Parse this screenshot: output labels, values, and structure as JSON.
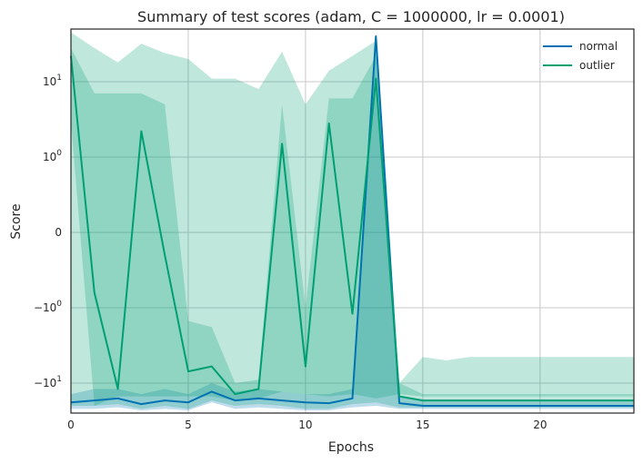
{
  "chart_data": {
    "type": "line",
    "title": "Summary of test scores (adam, C = 1000000, lr = 0.0001)",
    "xlabel": "Epochs",
    "ylabel": "Score",
    "yscale": "symlog",
    "xlim": [
      0,
      24
    ],
    "ylim": [
      -25,
      50
    ],
    "grid": true,
    "legend_position": "top-right",
    "x_ticks": [
      0,
      5,
      10,
      15,
      20
    ],
    "y_ticks": [
      {
        "value": 10,
        "label": "10",
        "exp": "1"
      },
      {
        "value": 1,
        "label": "10",
        "exp": "0"
      },
      {
        "value": 0,
        "label": "0",
        "exp": ""
      },
      {
        "value": -1,
        "label": "−10",
        "exp": "0"
      },
      {
        "value": -10,
        "label": "−10",
        "exp": "1"
      }
    ],
    "x": [
      0,
      1,
      2,
      3,
      4,
      5,
      6,
      7,
      8,
      9,
      10,
      11,
      12,
      13,
      14,
      15,
      16,
      17,
      18,
      19,
      20,
      21,
      22,
      23,
      24
    ],
    "series": [
      {
        "name": "normal",
        "color": "#0072b2",
        "mean": [
          -18,
          -17,
          -16,
          -19,
          -17,
          -18,
          -13,
          -17,
          -16,
          -17,
          -18,
          -18.5,
          -16,
          40,
          -18.5,
          -20,
          -20,
          -20,
          -20,
          -20,
          -20,
          -20,
          -20,
          -20,
          -20
        ],
        "lower": [
          -22,
          -22,
          -21,
          -23,
          -22,
          -23,
          -18,
          -22,
          -21,
          -22,
          -23,
          -23,
          -21,
          -20,
          -22,
          -22,
          -22,
          -22,
          -22,
          -22,
          -22,
          -22,
          -22,
          -22,
          -22
        ],
        "upper": [
          -14,
          -12,
          -12,
          -14,
          -12,
          -14,
          -10,
          -13,
          -12,
          -13,
          -14,
          -14,
          -12,
          45,
          -15,
          -17,
          -17,
          -17,
          -17,
          -17,
          -17,
          -17,
          -17,
          -17,
          -17
        ]
      },
      {
        "name": "outlier",
        "color": "#009e73",
        "mean": [
          22,
          -0.8,
          -12,
          2.2,
          -0.3,
          -7,
          -6,
          -14,
          -12,
          1.5,
          -6,
          2.8,
          -1.2,
          11,
          -15,
          -17,
          -17,
          -17,
          -17,
          -17,
          -17,
          -17,
          -17,
          -17,
          -17
        ],
        "lower": [
          -20,
          -20,
          -19,
          -22,
          -20,
          -22,
          -17,
          -20,
          -19,
          -20,
          -22,
          -22,
          -19,
          -18,
          -21,
          -21,
          -21,
          -21,
          -21,
          -21,
          -21,
          -21,
          -21,
          -21,
          -21
        ],
        "upper": [
          45,
          28,
          18,
          32,
          24,
          20,
          11,
          11,
          8,
          25,
          5,
          14,
          22,
          35,
          -10,
          -4.5,
          -5,
          -4.5,
          -4.5,
          -4.5,
          -4.5,
          -4.5,
          -4.5,
          -4.5,
          -4.5
        ],
        "inner_lower": [
          3,
          -20,
          -15,
          -15,
          -15,
          -15,
          -15,
          -17,
          -16,
          -13,
          -14,
          -15,
          -14,
          -16,
          -14,
          -15,
          -15,
          -15,
          -15,
          -15,
          -15,
          -15,
          -15,
          -15,
          -15
        ],
        "inner_upper": [
          28,
          7,
          7,
          7,
          5,
          -1.5,
          -1.8,
          -10,
          -9,
          5,
          -1,
          6,
          6,
          22,
          -10,
          -14,
          -14,
          -14,
          -14,
          -14,
          -14,
          -14,
          -14,
          -14,
          -14
        ]
      }
    ]
  }
}
